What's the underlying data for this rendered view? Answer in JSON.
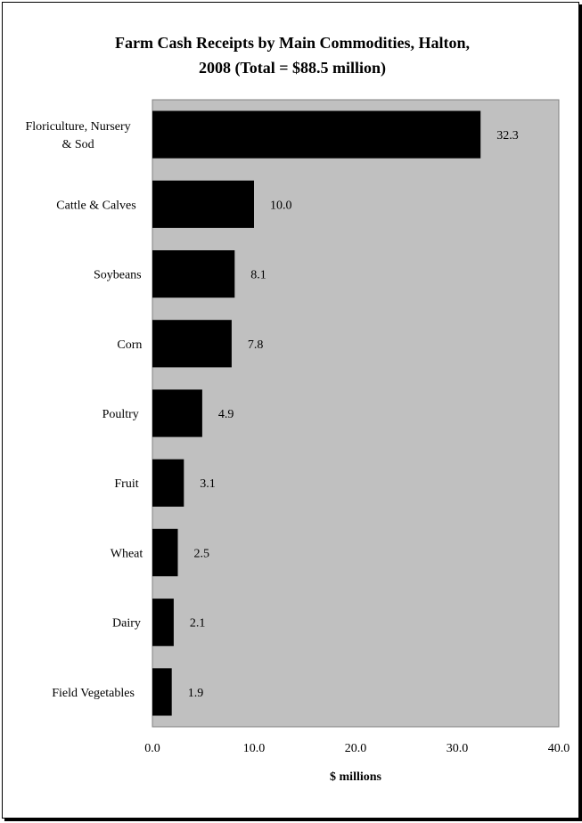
{
  "chart_data": {
    "type": "bar",
    "orientation": "horizontal",
    "title_lines": [
      "Farm Cash Receipts by Main Commodities, Halton,",
      "2008 (Total = $88.5 million)"
    ],
    "categories": [
      [
        "Floriculture, Nursery",
        "& Sod"
      ],
      [
        "Cattle & Calves"
      ],
      [
        "Soybeans"
      ],
      [
        "Corn"
      ],
      [
        "Poultry"
      ],
      [
        "Fruit"
      ],
      [
        "Wheat"
      ],
      [
        "Dairy"
      ],
      [
        "Field Vegetables"
      ]
    ],
    "values": [
      32.3,
      10.0,
      8.1,
      7.8,
      4.9,
      3.1,
      2.5,
      2.1,
      1.9
    ],
    "data_labels": [
      "32.3",
      "10.0",
      "8.1",
      "7.8",
      "4.9",
      "3.1",
      "2.5",
      "2.1",
      "1.9"
    ],
    "xlabel": "$ millions",
    "ylabel": "",
    "xlim": [
      0,
      40
    ],
    "xticks": [
      "0.0",
      "10.0",
      "20.0",
      "30.0",
      "40.0"
    ],
    "grid": false,
    "legend": "none",
    "colors": {
      "bar": "#000000",
      "plot_background": "#c0c0c0",
      "plot_border": "#808080"
    }
  }
}
